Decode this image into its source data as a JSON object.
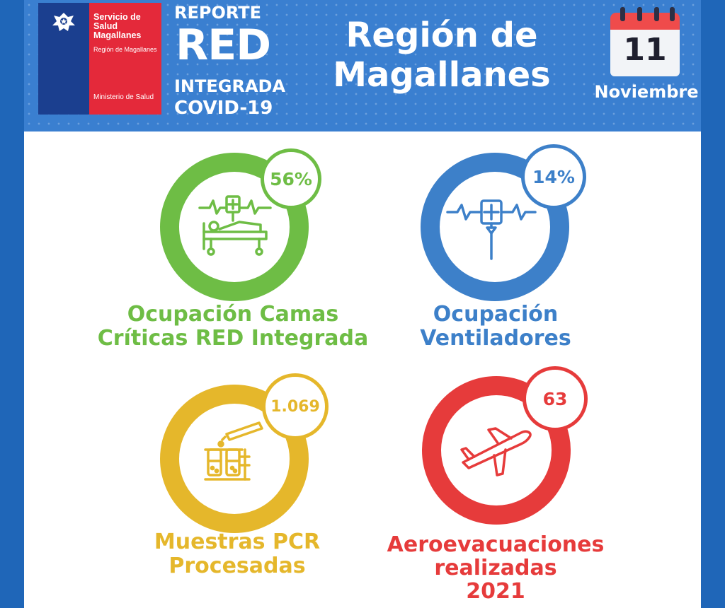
{
  "header": {
    "logo": {
      "line1": "Servicio de Salud Magallanes",
      "line2": "Región de Magallanes",
      "line3": "Ministerio de Salud"
    },
    "report": {
      "line1": "REPORTE",
      "line2": "RED",
      "line3": "INTEGRADA",
      "line4": "COVID-19"
    },
    "region_title_line1": "Región de",
    "region_title_line2": "Magallanes",
    "calendar": {
      "day": "11",
      "month": "Noviembre"
    }
  },
  "metrics": [
    {
      "value": "56%",
      "label_line1": "Ocupación Camas",
      "label_line2": "Críticas RED Integrada",
      "color": "#6ebd45",
      "icon": "hospital-bed-icon"
    },
    {
      "value": "14%",
      "label_line1": "Ocupación",
      "label_line2": "Ventiladores",
      "color": "#3d80c9",
      "icon": "ventilator-icon"
    },
    {
      "value": "1.069",
      "label_line1": "Muestras PCR",
      "label_line2": "Procesadas",
      "color": "#e5b72b",
      "icon": "test-tubes-icon"
    },
    {
      "value": "63",
      "label_line1": "Aeroevacuaciones",
      "label_line2": "realizadas",
      "label_line3": "2021",
      "color": "#e63b3b",
      "icon": "airplane-icon"
    }
  ]
}
